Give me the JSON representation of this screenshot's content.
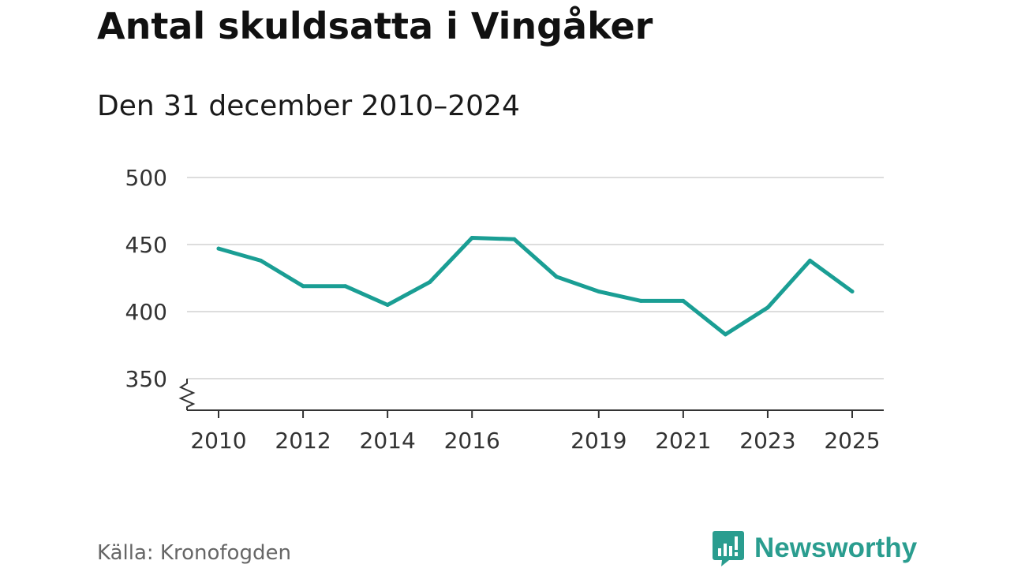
{
  "title": "Antal skuldsatta i Vingåker",
  "subtitle": "Den 31 december 2010–2024",
  "source": "Källa: Kronofogden",
  "brand": "Newsworthy",
  "colors": {
    "line": "#1a9e94",
    "grid": "#dddddd",
    "axis": "#333333",
    "brand": "#2a9d8f"
  },
  "chart_data": {
    "type": "line",
    "title": "Antal skuldsatta i Vingåker",
    "xlabel": "",
    "ylabel": "",
    "x": [
      2010,
      2011,
      2012,
      2013,
      2014,
      2015,
      2016,
      2017,
      2018,
      2019,
      2020,
      2021,
      2022,
      2023,
      2024,
      2025
    ],
    "series": [
      {
        "name": "Antal skuldsatta",
        "values": [
          447,
          438,
          419,
          419,
          405,
          422,
          455,
          454,
          426,
          415,
          408,
          408,
          383,
          403,
          438,
          415
        ]
      }
    ],
    "xticks": [
      2010,
      2012,
      2014,
      2016,
      2019,
      2021,
      2023,
      2025
    ],
    "yticks": [
      350,
      400,
      450,
      500
    ],
    "ylim": [
      350,
      500
    ],
    "y_axis_break": true,
    "grid": true
  }
}
